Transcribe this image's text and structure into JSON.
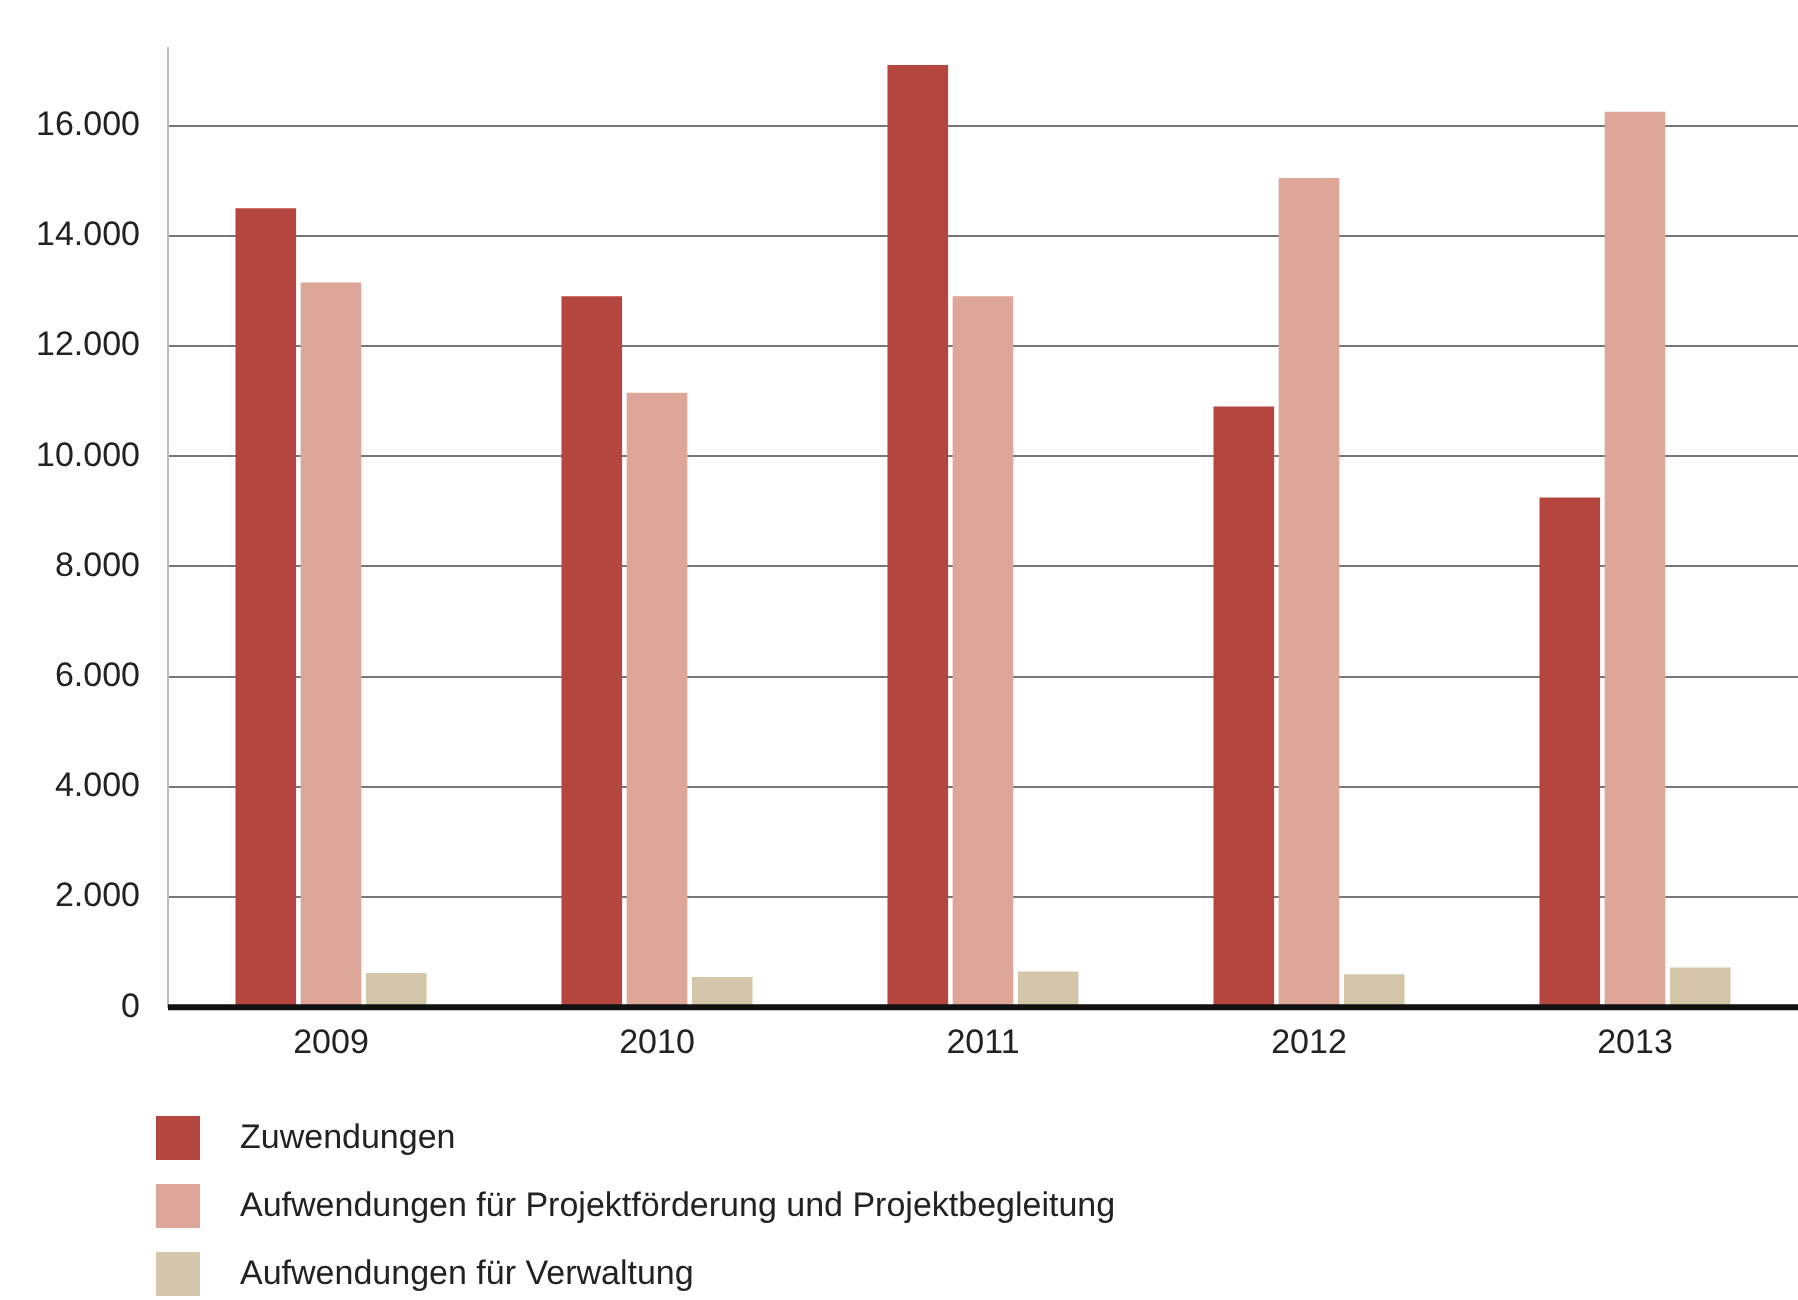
{
  "chart_data": {
    "type": "bar",
    "categories": [
      "2009",
      "2010",
      "2011",
      "2012",
      "2013"
    ],
    "series": [
      {
        "name": "Zuwendungen",
        "color": "#b5453f",
        "values": [
          14500,
          12900,
          17100,
          10900,
          9250
        ]
      },
      {
        "name": "Aufwendungen für Projektförderung und Projektbegleitung",
        "color": "#dea699",
        "values": [
          13150,
          11150,
          12900,
          15050,
          16250
        ]
      },
      {
        "name": "Aufwendungen für Verwaltung",
        "color": "#d4c6a9",
        "values": [
          620,
          550,
          650,
          600,
          720
        ]
      }
    ],
    "ylim": [
      0,
      17400
    ],
    "yticks": [
      {
        "value": 0,
        "label": "0"
      },
      {
        "value": 2000,
        "label": "2.000"
      },
      {
        "value": 4000,
        "label": "4.000"
      },
      {
        "value": 6000,
        "label": "6.000"
      },
      {
        "value": 8000,
        "label": "8.000"
      },
      {
        "value": 10000,
        "label": "10.000"
      },
      {
        "value": 12000,
        "label": "12.000"
      },
      {
        "value": 14000,
        "label": "14.000"
      },
      {
        "value": 16000,
        "label": "16.000"
      }
    ],
    "grid": "y",
    "legend": "bottom"
  }
}
